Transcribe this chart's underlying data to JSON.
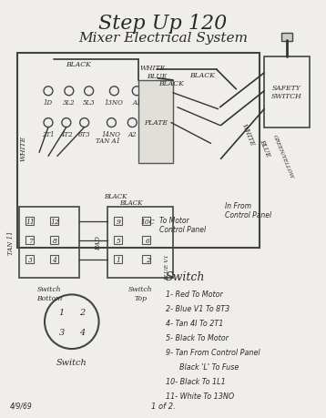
{
  "title": "Step Up 120",
  "subtitle": "Mixer Electrical System",
  "bg_color": "#f0eeea",
  "text_color": "#2a2a2a",
  "title_fontsize": 16,
  "subtitle_fontsize": 11,
  "switch_legend_title": "Switch",
  "switch_items": [
    "1- Red To Motor",
    "2- Blue V1 To 8T3",
    "4- Tan 4I To 2T1",
    "5- Black To Motor",
    "9- Tan From Control Panel",
    "      Black 'L' To Fuse",
    "10- Black To 1L1",
    "11- White To 13NO"
  ],
  "footer_left": "4/9/69",
  "footer_center": "1 of 2.",
  "switch_bottom_label": "Switch\nBottom",
  "switch_top_label": "Switch\nTop",
  "switch_circle_label": "Switch",
  "switch_pins": [
    "1",
    "2",
    "3",
    "4"
  ]
}
